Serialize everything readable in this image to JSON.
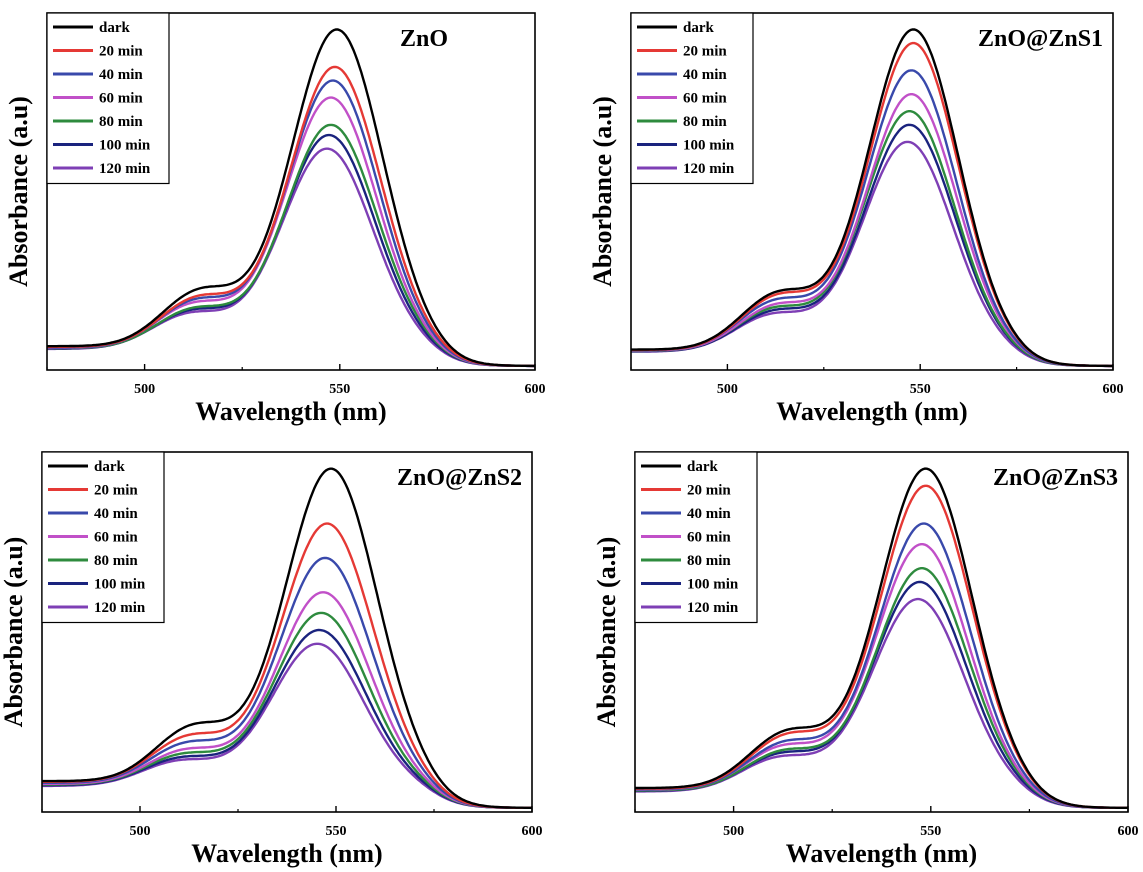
{
  "chart_data": [
    {
      "type": "line",
      "title": "ZnO",
      "xlabel": "Wavelength (nm)",
      "ylabel": "Absorbance (a.u)",
      "xlim": [
        475,
        600
      ],
      "xticks": [
        500,
        550,
        600
      ],
      "ylim": [
        0,
        1.05
      ],
      "legend_placement": "top-left",
      "series": [
        {
          "name": "dark",
          "color": "#000000",
          "peak": 1.0,
          "base": 0.07,
          "peak_x": 549.5
        },
        {
          "name": "20 min",
          "color": "#e53935",
          "peak": 0.89,
          "base": 0.068,
          "peak_x": 549.0
        },
        {
          "name": "40 min",
          "color": "#3949ab",
          "peak": 0.85,
          "base": 0.066,
          "peak_x": 548.5
        },
        {
          "name": "60 min",
          "color": "#c150c8",
          "peak": 0.8,
          "base": 0.065,
          "peak_x": 548.0
        },
        {
          "name": "80 min",
          "color": "#2e8b3e",
          "peak": 0.72,
          "base": 0.064,
          "peak_x": 548.0
        },
        {
          "name": "100 min",
          "color": "#1a237e",
          "peak": 0.69,
          "base": 0.063,
          "peak_x": 547.5
        },
        {
          "name": "120 min",
          "color": "#7e3fb5",
          "peak": 0.65,
          "base": 0.062,
          "peak_x": 547.0
        }
      ]
    },
    {
      "type": "line",
      "title": "ZnO@ZnS1",
      "xlabel": "Wavelength (nm)",
      "ylabel": "Absorbance (a.u)",
      "xlim": [
        475,
        600
      ],
      "xticks": [
        500,
        550,
        600
      ],
      "ylim": [
        0,
        1.05
      ],
      "legend_placement": "top-left",
      "series": [
        {
          "name": "dark",
          "color": "#000000",
          "peak": 1.0,
          "base": 0.06,
          "peak_x": 548.5
        },
        {
          "name": "20 min",
          "color": "#e53935",
          "peak": 0.96,
          "base": 0.059,
          "peak_x": 548.5
        },
        {
          "name": "40 min",
          "color": "#3949ab",
          "peak": 0.88,
          "base": 0.058,
          "peak_x": 548.0
        },
        {
          "name": "60 min",
          "color": "#c150c8",
          "peak": 0.81,
          "base": 0.057,
          "peak_x": 548.0
        },
        {
          "name": "80 min",
          "color": "#2e8b3e",
          "peak": 0.76,
          "base": 0.056,
          "peak_x": 547.5
        },
        {
          "name": "100 min",
          "color": "#1a237e",
          "peak": 0.72,
          "base": 0.055,
          "peak_x": 547.5
        },
        {
          "name": "120 min",
          "color": "#7e3fb5",
          "peak": 0.67,
          "base": 0.054,
          "peak_x": 547.0
        }
      ]
    },
    {
      "type": "line",
      "title": "ZnO@ZnS2",
      "xlabel": "Wavelength (nm)",
      "ylabel": "Absorbance (a.u)",
      "xlim": [
        475,
        600
      ],
      "xticks": [
        500,
        550,
        600
      ],
      "ylim": [
        0,
        1.05
      ],
      "legend_placement": "top-left",
      "series": [
        {
          "name": "dark",
          "color": "#000000",
          "peak": 1.0,
          "base": 0.09,
          "peak_x": 549.0
        },
        {
          "name": "20 min",
          "color": "#e53935",
          "peak": 0.84,
          "base": 0.088,
          "peak_x": 548.0
        },
        {
          "name": "40 min",
          "color": "#3949ab",
          "peak": 0.74,
          "base": 0.085,
          "peak_x": 547.5
        },
        {
          "name": "60 min",
          "color": "#c150c8",
          "peak": 0.64,
          "base": 0.082,
          "peak_x": 547.0
        },
        {
          "name": "80 min",
          "color": "#2e8b3e",
          "peak": 0.58,
          "base": 0.08,
          "peak_x": 546.5
        },
        {
          "name": "100 min",
          "color": "#1a237e",
          "peak": 0.53,
          "base": 0.078,
          "peak_x": 546.0
        },
        {
          "name": "120 min",
          "color": "#7e3fb5",
          "peak": 0.49,
          "base": 0.076,
          "peak_x": 545.5
        }
      ]
    },
    {
      "type": "line",
      "title": "ZnO@ZnS3",
      "xlabel": "Wavelength (nm)",
      "ylabel": "Absorbance (a.u)",
      "xlim": [
        475,
        600
      ],
      "xticks": [
        500,
        550,
        600
      ],
      "ylim": [
        0,
        1.05
      ],
      "legend_placement": "top-left",
      "series": [
        {
          "name": "dark",
          "color": "#000000",
          "peak": 1.0,
          "base": 0.07,
          "peak_x": 549.0
        },
        {
          "name": "20 min",
          "color": "#e53935",
          "peak": 0.95,
          "base": 0.068,
          "peak_x": 549.0
        },
        {
          "name": "40 min",
          "color": "#3949ab",
          "peak": 0.84,
          "base": 0.066,
          "peak_x": 548.5
        },
        {
          "name": "60 min",
          "color": "#c150c8",
          "peak": 0.78,
          "base": 0.065,
          "peak_x": 548.0
        },
        {
          "name": "80 min",
          "color": "#2e8b3e",
          "peak": 0.71,
          "base": 0.063,
          "peak_x": 548.0
        },
        {
          "name": "100 min",
          "color": "#1a237e",
          "peak": 0.67,
          "base": 0.062,
          "peak_x": 547.5
        },
        {
          "name": "120 min",
          "color": "#7e3fb5",
          "peak": 0.62,
          "base": 0.06,
          "peak_x": 547.0
        }
      ]
    }
  ]
}
